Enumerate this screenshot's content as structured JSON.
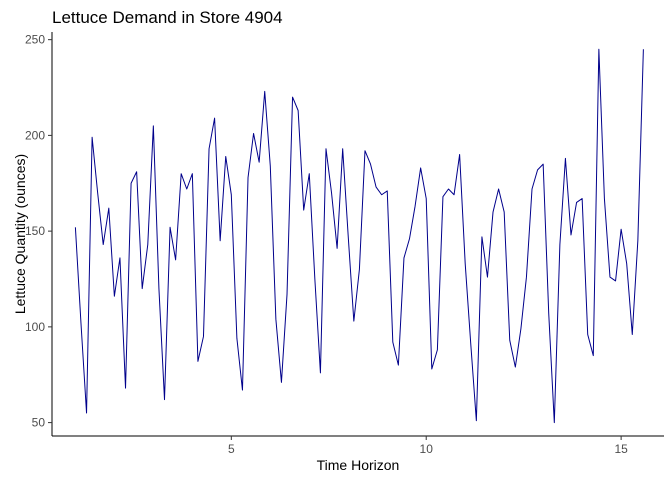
{
  "chart_data": {
    "type": "line",
    "title": "Lettuce Demand in Store 4904",
    "xlabel": "Time Horizon",
    "ylabel": "Lettuce Quantity (ounces)",
    "xlim": [
      0.4,
      16.1
    ],
    "ylim": [
      43,
      254
    ],
    "xticks": [
      5,
      10,
      15
    ],
    "yticks": [
      50,
      100,
      150,
      200,
      250
    ],
    "grid": false,
    "legend": "none",
    "line_color": "#00008b",
    "series": [
      {
        "x": [
          1.0,
          1.143,
          1.286,
          1.429,
          1.571,
          1.714,
          1.857,
          2.0,
          2.143,
          2.286,
          2.429,
          2.571,
          2.714,
          2.857,
          3.0,
          3.143,
          3.286,
          3.429,
          3.571,
          3.714,
          3.857,
          4.0,
          4.143,
          4.286,
          4.429,
          4.571,
          4.714,
          4.857,
          5.0,
          5.143,
          5.286,
          5.429,
          5.571,
          5.714,
          5.857,
          6.0,
          6.143,
          6.286,
          6.429,
          6.571,
          6.714,
          6.857,
          7.0,
          7.143,
          7.286,
          7.429,
          7.571,
          7.714,
          7.857,
          8.0,
          8.143,
          8.286,
          8.429,
          8.571,
          8.714,
          8.857,
          9.0,
          9.143,
          9.286,
          9.429,
          9.571,
          9.714,
          9.857,
          10.0,
          10.143,
          10.286,
          10.429,
          10.571,
          10.714,
          10.857,
          11.0,
          11.143,
          11.286,
          11.429,
          11.571,
          11.714,
          11.857,
          12.0,
          12.143,
          12.286,
          12.429,
          12.571,
          12.714,
          12.857,
          13.0,
          13.143,
          13.286,
          13.429,
          13.571,
          13.714,
          13.857,
          14.0,
          14.143,
          14.286,
          14.429,
          14.571,
          14.714,
          14.857,
          15.0,
          15.143,
          15.286,
          15.429,
          15.571
        ],
        "values": [
          152,
          102,
          55,
          199,
          170,
          143,
          162,
          116,
          136,
          68,
          175,
          181,
          120,
          143,
          205,
          120,
          62,
          152,
          135,
          180,
          172,
          180,
          82,
          95,
          193,
          209,
          145,
          189,
          169,
          94,
          67,
          178,
          201,
          186,
          223,
          184,
          104,
          71,
          117,
          220,
          213,
          161,
          180,
          125,
          76,
          193,
          170,
          141,
          193,
          147,
          103,
          130,
          192,
          185,
          173,
          169,
          171,
          92,
          80,
          136,
          146,
          163,
          183,
          167,
          78,
          88,
          168,
          172,
          169,
          190,
          133,
          91,
          51,
          147,
          126,
          160,
          172,
          160,
          93,
          79,
          99,
          126,
          172,
          182,
          185,
          107,
          50,
          143,
          188,
          148,
          165,
          167,
          96,
          85,
          245,
          167,
          126,
          124,
          151,
          133,
          96,
          145,
          245
        ]
      }
    ]
  }
}
